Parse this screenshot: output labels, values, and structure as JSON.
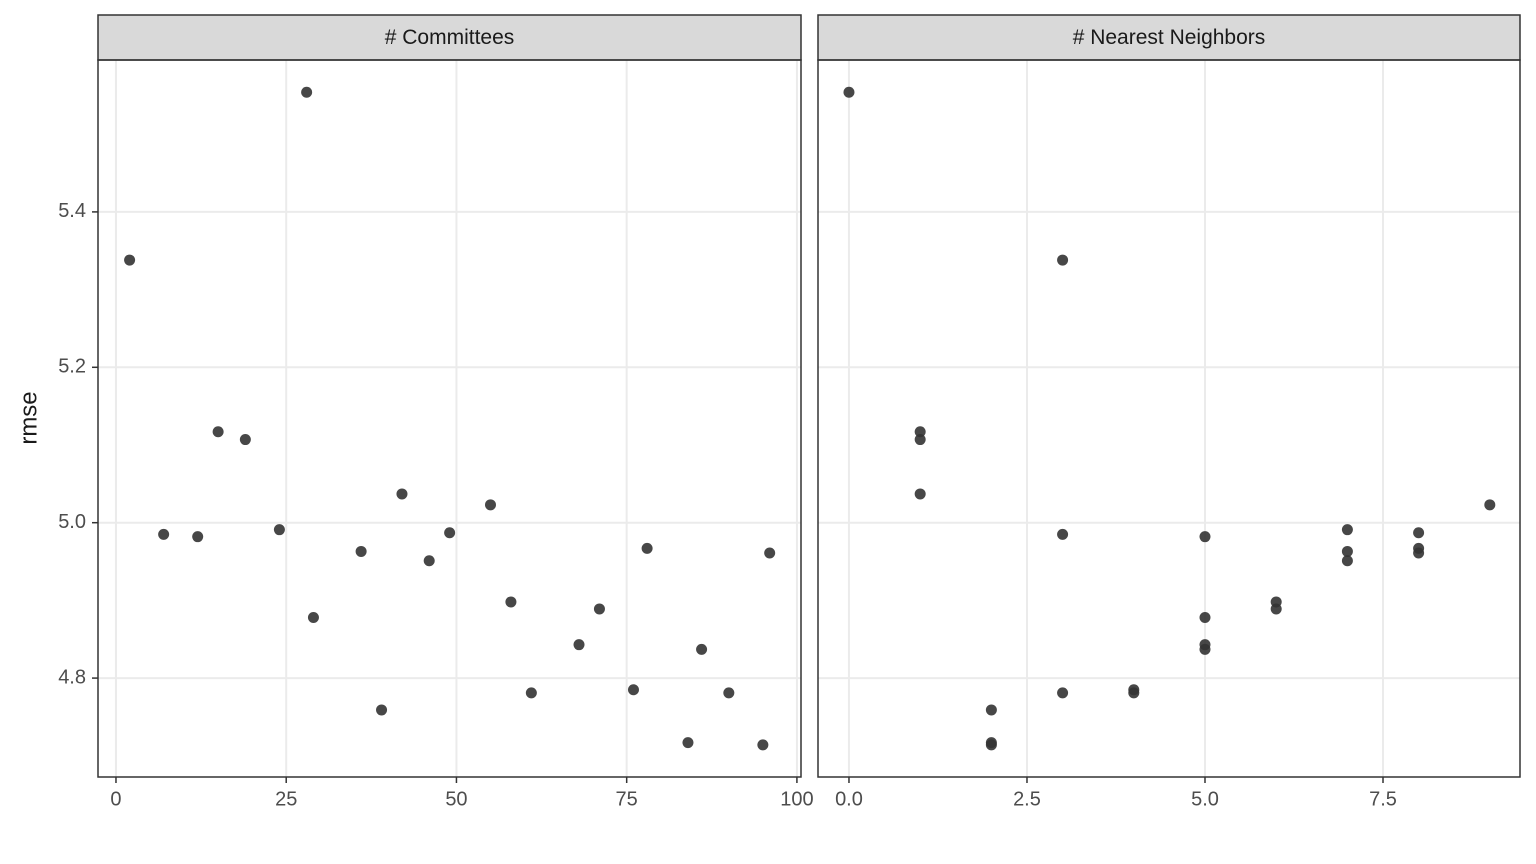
{
  "chart_data": [
    {
      "type": "scatter",
      "title": "# Committees",
      "ylabel": "rmse",
      "x": [
        2,
        7,
        12,
        15,
        19,
        24,
        28,
        29,
        36,
        39,
        42,
        46,
        49,
        55,
        58,
        61,
        68,
        71,
        76,
        78,
        86,
        90,
        84,
        95,
        96
      ],
      "values": [
        5.338,
        4.985,
        4.982,
        5.117,
        5.107,
        4.991,
        5.554,
        4.878,
        4.963,
        4.759,
        5.037,
        4.951,
        4.987,
        5.023,
        4.898,
        4.781,
        4.843,
        4.889,
        4.785,
        4.967,
        4.837,
        4.781,
        4.717,
        4.714,
        4.961
      ],
      "color": "#333333",
      "xlim": [
        -2.64,
        100.6
      ],
      "xticks": [
        0,
        25,
        50,
        75,
        100
      ],
      "ylim": [
        4.6727,
        5.5955
      ],
      "yticks": [
        4.8,
        {
          "value": 5,
          "label": "5.0"
        },
        5.2,
        5.4
      ],
      "grid": true
    },
    {
      "type": "scatter",
      "title": "# Nearest Neighbors",
      "x": [
        0,
        3,
        1,
        1,
        1,
        3,
        5,
        7,
        7,
        7,
        8,
        8,
        8,
        9,
        6,
        6,
        5,
        5,
        5,
        3,
        4,
        4,
        2,
        2,
        2
      ],
      "values": [
        5.554,
        5.338,
        5.117,
        5.107,
        5.037,
        4.985,
        4.982,
        4.991,
        4.963,
        4.951,
        4.987,
        4.967,
        4.961,
        5.023,
        4.898,
        4.889,
        4.878,
        4.843,
        4.837,
        4.781,
        4.785,
        4.781,
        4.759,
        4.717,
        4.714
      ],
      "color": "#333333",
      "xlim": [
        -0.435,
        9.424
      ],
      "xticks": [
        {
          "value": 0,
          "label": "0.0"
        },
        2.5,
        {
          "value": 5,
          "label": "5.0"
        },
        7.5
      ],
      "grid": true
    }
  ]
}
